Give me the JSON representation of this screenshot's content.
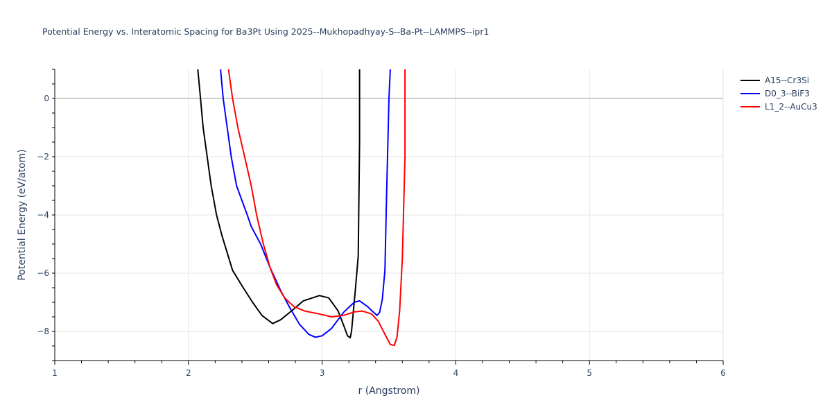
{
  "chart_data": {
    "type": "line",
    "title": "Potential Energy vs. Interatomic Spacing for Ba3Pt Using 2025--Mukhopadhyay-S--Ba-Pt--LAMMPS--ipr1",
    "xlabel": "r (Angstrom)",
    "ylabel": "Potential Energy (eV/atom)",
    "xlim": [
      1,
      6
    ],
    "ylim": [
      -9,
      1
    ],
    "x_ticks": [
      "1",
      "2",
      "3",
      "4",
      "5",
      "6"
    ],
    "y_ticks": [
      "0",
      "−2",
      "−4",
      "−6",
      "−8"
    ],
    "grid": true,
    "legend_position": "right",
    "series": [
      {
        "name": "A15--Cr3Si",
        "color": "#000000",
        "x": [
          2.07,
          2.09,
          2.11,
          2.14,
          2.17,
          2.21,
          2.25,
          2.29,
          2.33,
          2.41,
          2.48,
          2.55,
          2.63,
          2.69,
          2.77,
          2.86,
          2.98,
          3.05,
          3.12,
          3.17,
          3.19,
          3.21,
          3.22,
          3.25,
          3.27,
          3.28,
          3.28
        ],
        "y": [
          1.0,
          0.0,
          -1.0,
          -2.0,
          -3.0,
          -4.0,
          -4.7,
          -5.3,
          -5.9,
          -6.5,
          -7.0,
          -7.45,
          -7.73,
          -7.6,
          -7.3,
          -6.95,
          -6.77,
          -6.85,
          -7.3,
          -7.9,
          -8.15,
          -8.22,
          -8.0,
          -6.5,
          -5.4,
          -1.5,
          1.0
        ]
      },
      {
        "name": "D0_3--BiF3",
        "color": "#0000ff",
        "x": [
          2.24,
          2.26,
          2.29,
          2.32,
          2.36,
          2.44,
          2.47,
          2.54,
          2.61,
          2.69,
          2.76,
          2.83,
          2.9,
          2.95,
          3.0,
          3.07,
          3.16,
          3.24,
          3.28,
          3.34,
          3.41,
          3.43,
          3.45,
          3.47,
          3.48,
          3.5,
          3.51
        ],
        "y": [
          1.0,
          0.0,
          -1.0,
          -2.0,
          -3.0,
          -4.0,
          -4.4,
          -5.0,
          -5.8,
          -6.6,
          -7.2,
          -7.75,
          -8.1,
          -8.2,
          -8.15,
          -7.9,
          -7.35,
          -7.0,
          -6.95,
          -7.15,
          -7.45,
          -7.35,
          -6.9,
          -5.9,
          -3.8,
          0.0,
          1.0
        ]
      },
      {
        "name": "L1_2--AuCu3",
        "color": "#ff0000",
        "x": [
          2.3,
          2.33,
          2.37,
          2.42,
          2.47,
          2.51,
          2.56,
          2.61,
          2.66,
          2.72,
          2.79,
          2.87,
          2.98,
          3.07,
          3.16,
          3.24,
          3.3,
          3.37,
          3.42,
          3.47,
          3.51,
          3.54,
          3.56,
          3.58,
          3.6,
          3.62,
          3.62
        ],
        "y": [
          1.0,
          0.0,
          -1.0,
          -2.0,
          -3.0,
          -4.0,
          -5.0,
          -5.8,
          -6.4,
          -6.85,
          -7.15,
          -7.3,
          -7.4,
          -7.5,
          -7.45,
          -7.33,
          -7.3,
          -7.4,
          -7.65,
          -8.1,
          -8.45,
          -8.48,
          -8.2,
          -7.3,
          -5.5,
          -2.0,
          1.0
        ]
      }
    ]
  }
}
